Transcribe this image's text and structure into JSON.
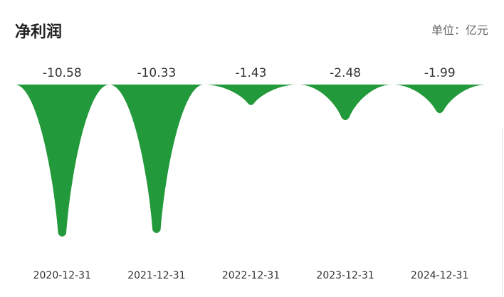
{
  "header": {
    "title": "净利润",
    "unit": "单位：亿元"
  },
  "colors": {
    "bar": "#22993a",
    "text": "#333333"
  },
  "chart_data": {
    "type": "bar",
    "title": "净利润",
    "unit_label": "单位：亿元",
    "categories": [
      "2020-12-31",
      "2021-12-31",
      "2022-12-31",
      "2023-12-31",
      "2024-12-31"
    ],
    "values": [
      -10.58,
      -10.33,
      -1.43,
      -2.48,
      -1.99
    ],
    "value_labels": [
      "-10.58",
      "-10.33",
      "-1.43",
      "-2.48",
      "-1.99"
    ],
    "ylim": [
      -10.58,
      0
    ],
    "xlabel": "",
    "ylabel": "",
    "grid": false,
    "legend": "none"
  }
}
